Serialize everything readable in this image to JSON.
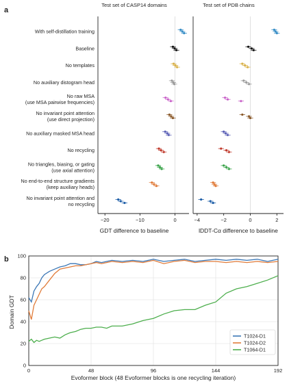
{
  "panels": {
    "a": "a",
    "b": "b"
  },
  "chart_data": [
    {
      "type": "scatter",
      "panel": "a",
      "title_left": "Test set of CASP14 domains",
      "title_right": "Test set of PDB chains",
      "xlabel_left": "GDT difference to baseline",
      "xlabel_right": "lDDT-Cα difference to baseline",
      "xlim_left": [
        -22,
        4
      ],
      "xlim_right": [
        -4.3,
        2.5
      ],
      "xticks_left": [
        -20,
        -10,
        0
      ],
      "xticks_right": [
        -4,
        -2,
        0,
        2
      ],
      "categories": [
        "With self-distillation training",
        "Baseline",
        "No templates",
        "No auxiliary distogram head",
        "No raw MSA\n(use MSA pairwise frequencies)",
        "No invariant point attention\n(use direct projection)",
        "No auxiliary masked MSA head",
        "No recycling",
        "No triangles, biasing, or gating\n(use axial attention)",
        "No end-to-end structure gradients\n(keep auxiliary heads)",
        "No invariant point attention and\nno recycling"
      ],
      "colors": [
        "#3a8fc7",
        "#111111",
        "#d9b14a",
        "#9a9a9a",
        "#c963c9",
        "#8b5a2b",
        "#5a5fb5",
        "#c0392b",
        "#3aa34a",
        "#e07b39",
        "#1f5fa8"
      ],
      "gdt_points": [
        [
          1.6,
          2.1,
          2.6
        ],
        [
          -0.6,
          -0.1,
          0.4
        ],
        [
          -0.4,
          0.1,
          0.6
        ],
        [
          -0.9,
          -0.5,
          -0.2
        ],
        [
          -2.7,
          -2.0,
          -1.2
        ],
        [
          -1.6,
          -1.1,
          -0.6
        ],
        [
          -2.8,
          -2.2,
          -1.8
        ],
        [
          -4.6,
          -4.0,
          -3.2
        ],
        [
          -4.8,
          -4.3,
          -3.8
        ],
        [
          -6.6,
          -6.0,
          -5.3
        ],
        [
          -16.2,
          -15.5,
          -14.4
        ]
      ],
      "lddt_points": [
        [
          1.8,
          1.9,
          2.0
        ],
        [
          -0.15,
          0.1,
          0.25
        ],
        [
          -0.6,
          -0.4,
          -0.2
        ],
        [
          -0.5,
          -0.3,
          -0.1
        ],
        [
          -1.9,
          -1.7,
          -0.7
        ],
        [
          -0.6,
          -0.1,
          0.0
        ],
        [
          -2.0,
          -1.85,
          -1.7
        ],
        [
          -2.2,
          -1.8,
          -1.6
        ],
        [
          -2.0,
          -1.8,
          -1.6
        ],
        [
          -2.8,
          -2.7,
          -2.6
        ],
        [
          -3.7,
          -3.0,
          -2.8
        ]
      ]
    },
    {
      "type": "line",
      "panel": "b",
      "xlabel": "Evoformer block (48 Evoformer blocks is one recycling iteration)",
      "ylabel": "Domain GDT",
      "xlim": [
        0,
        192
      ],
      "ylim": [
        0,
        100
      ],
      "xticks": [
        0,
        48,
        96,
        144,
        192
      ],
      "yticks": [
        0,
        20,
        40,
        60,
        80,
        100
      ],
      "grid": true,
      "legend": "bottom-right",
      "x": [
        0,
        2,
        4,
        6,
        8,
        10,
        12,
        16,
        20,
        24,
        28,
        32,
        36,
        40,
        44,
        48,
        52,
        56,
        60,
        64,
        72,
        80,
        88,
        96,
        104,
        112,
        120,
        128,
        136,
        144,
        152,
        160,
        168,
        176,
        184,
        192
      ],
      "series": [
        {
          "name": "T1024-D1",
          "color": "#3a76b5",
          "values": [
            62,
            58,
            68,
            72,
            75,
            80,
            83,
            86,
            88,
            90,
            91,
            93,
            93,
            92,
            92,
            93,
            95,
            94,
            95,
            96,
            95,
            96,
            95,
            97,
            95,
            96,
            97,
            95,
            96,
            97,
            96,
            97,
            96,
            97,
            95,
            97
          ]
        },
        {
          "name": "T1024-D2",
          "color": "#e07b39",
          "values": [
            50,
            42,
            55,
            60,
            65,
            70,
            72,
            78,
            84,
            88,
            89,
            90,
            91,
            91,
            92,
            93,
            94,
            93,
            94,
            95,
            94,
            95,
            94,
            96,
            93,
            95,
            96,
            94,
            95,
            95,
            94,
            95,
            94,
            95,
            94,
            95
          ]
        },
        {
          "name": "T1064-D1",
          "color": "#4cae4c",
          "values": [
            22,
            24,
            21,
            23,
            22,
            23,
            24,
            25,
            26,
            25,
            28,
            30,
            31,
            33,
            34,
            34,
            35,
            35,
            34,
            36,
            36,
            38,
            41,
            43,
            47,
            50,
            51,
            51,
            55,
            58,
            66,
            70,
            72,
            75,
            78,
            82
          ]
        }
      ]
    }
  ]
}
